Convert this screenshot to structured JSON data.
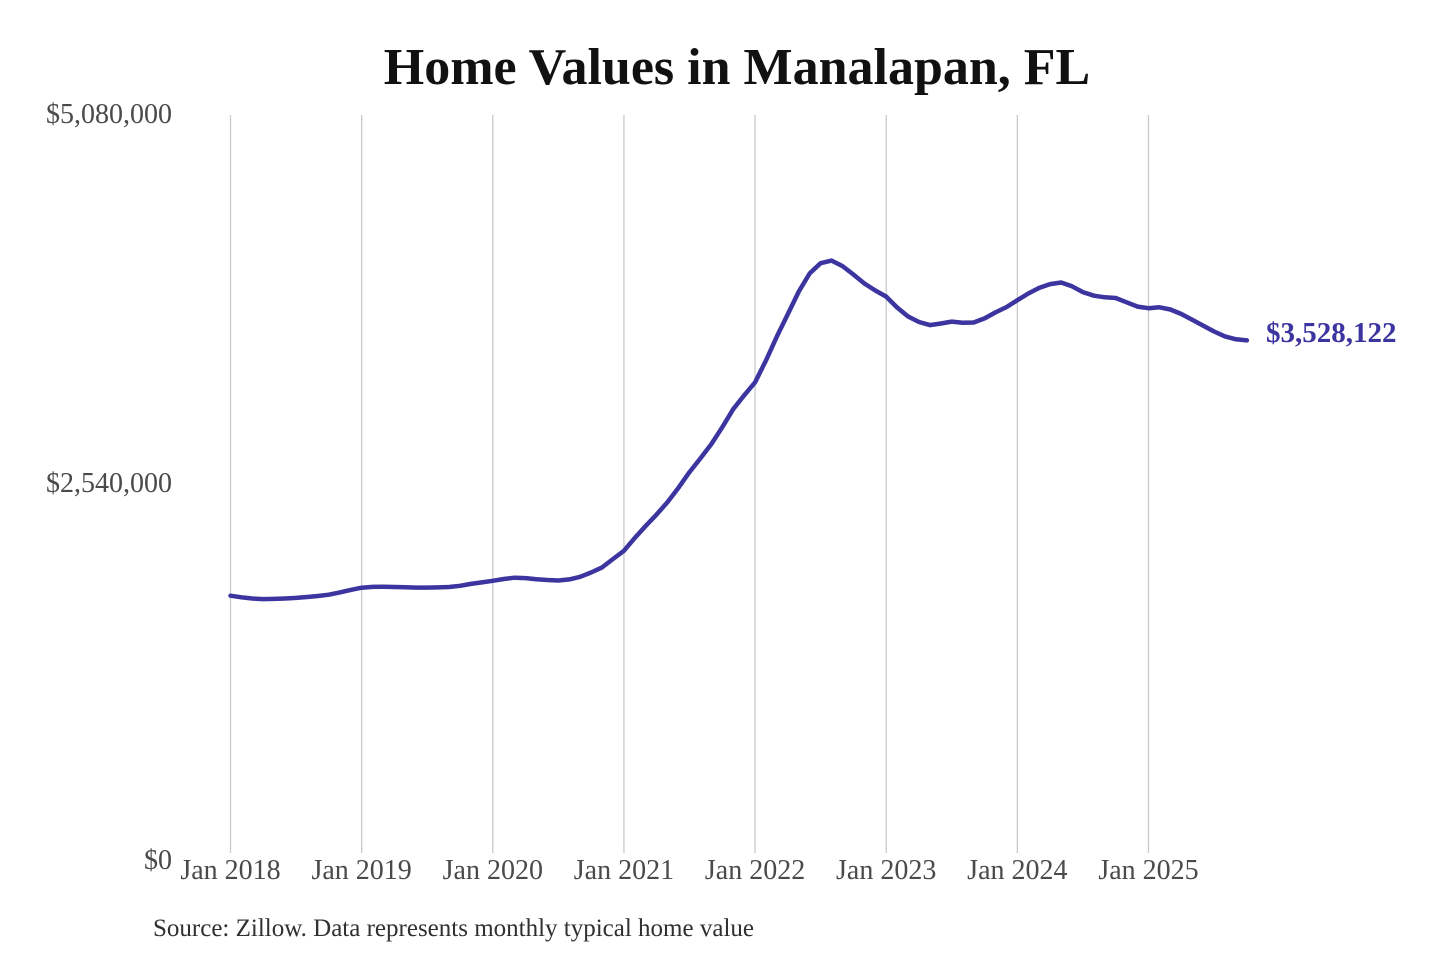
{
  "title": "Home Values in Manalapan, FL",
  "source_note": "Source: Zillow. Data represents monthly typical home value",
  "latest_value_label": "$3,528,122",
  "colors": {
    "line": "#3c35a0",
    "value_label": "#3c35a0",
    "gridline": "#c9c9c9",
    "axis_text": "#4a4a4a",
    "title_text": "#111111",
    "source_text": "#303030",
    "background": "#ffffff"
  },
  "chart_data": {
    "type": "line",
    "title": "Home Values in Manalapan, FL",
    "xlabel": "",
    "ylabel": "",
    "x_unit": "month",
    "x_start": "Jan 2018",
    "x_end": "Oct 2025",
    "x_tick_labels": [
      "Jan 2018",
      "Jan 2019",
      "Jan 2020",
      "Jan 2021",
      "Jan 2022",
      "Jan 2023",
      "Jan 2024",
      "Jan 2025"
    ],
    "y_ticks": [
      0,
      2540000,
      5080000
    ],
    "y_tick_labels": [
      "$0",
      "$2,540,000",
      "$5,080,000"
    ],
    "ylim": [
      0,
      5080000
    ],
    "grid": "vertical-only",
    "legend": "none",
    "annotation_last_value": "$3,528,122",
    "series": [
      {
        "name": "Monthly typical home value",
        "values": [
          1771000,
          1760000,
          1752000,
          1748000,
          1749000,
          1752000,
          1756000,
          1762000,
          1769000,
          1778000,
          1794000,
          1811000,
          1826000,
          1832000,
          1833000,
          1831000,
          1829000,
          1827000,
          1827000,
          1828000,
          1831000,
          1839000,
          1852000,
          1863000,
          1874000,
          1886000,
          1895000,
          1892000,
          1885000,
          1879000,
          1876000,
          1883000,
          1901000,
          1931000,
          1966000,
          2024000,
          2080000,
          2170000,
          2252000,
          2331000,
          2416000,
          2515000,
          2622000,
          2716000,
          2815000,
          2931000,
          3055000,
          3150000,
          3240000,
          3391000,
          3556000,
          3710000,
          3865000,
          3990000,
          4060000,
          4078000,
          4040000,
          3982000,
          3920000,
          3872000,
          3830000,
          3755000,
          3693000,
          3655000,
          3634000,
          3645000,
          3658000,
          3650000,
          3652000,
          3680000,
          3721000,
          3758000,
          3805000,
          3851000,
          3890000,
          3916000,
          3927000,
          3901000,
          3861000,
          3836000,
          3825000,
          3820000,
          3791000,
          3761000,
          3750000,
          3756000,
          3741000,
          3710000,
          3671000,
          3630000,
          3590000,
          3556000,
          3536000,
          3528122
        ]
      }
    ]
  }
}
